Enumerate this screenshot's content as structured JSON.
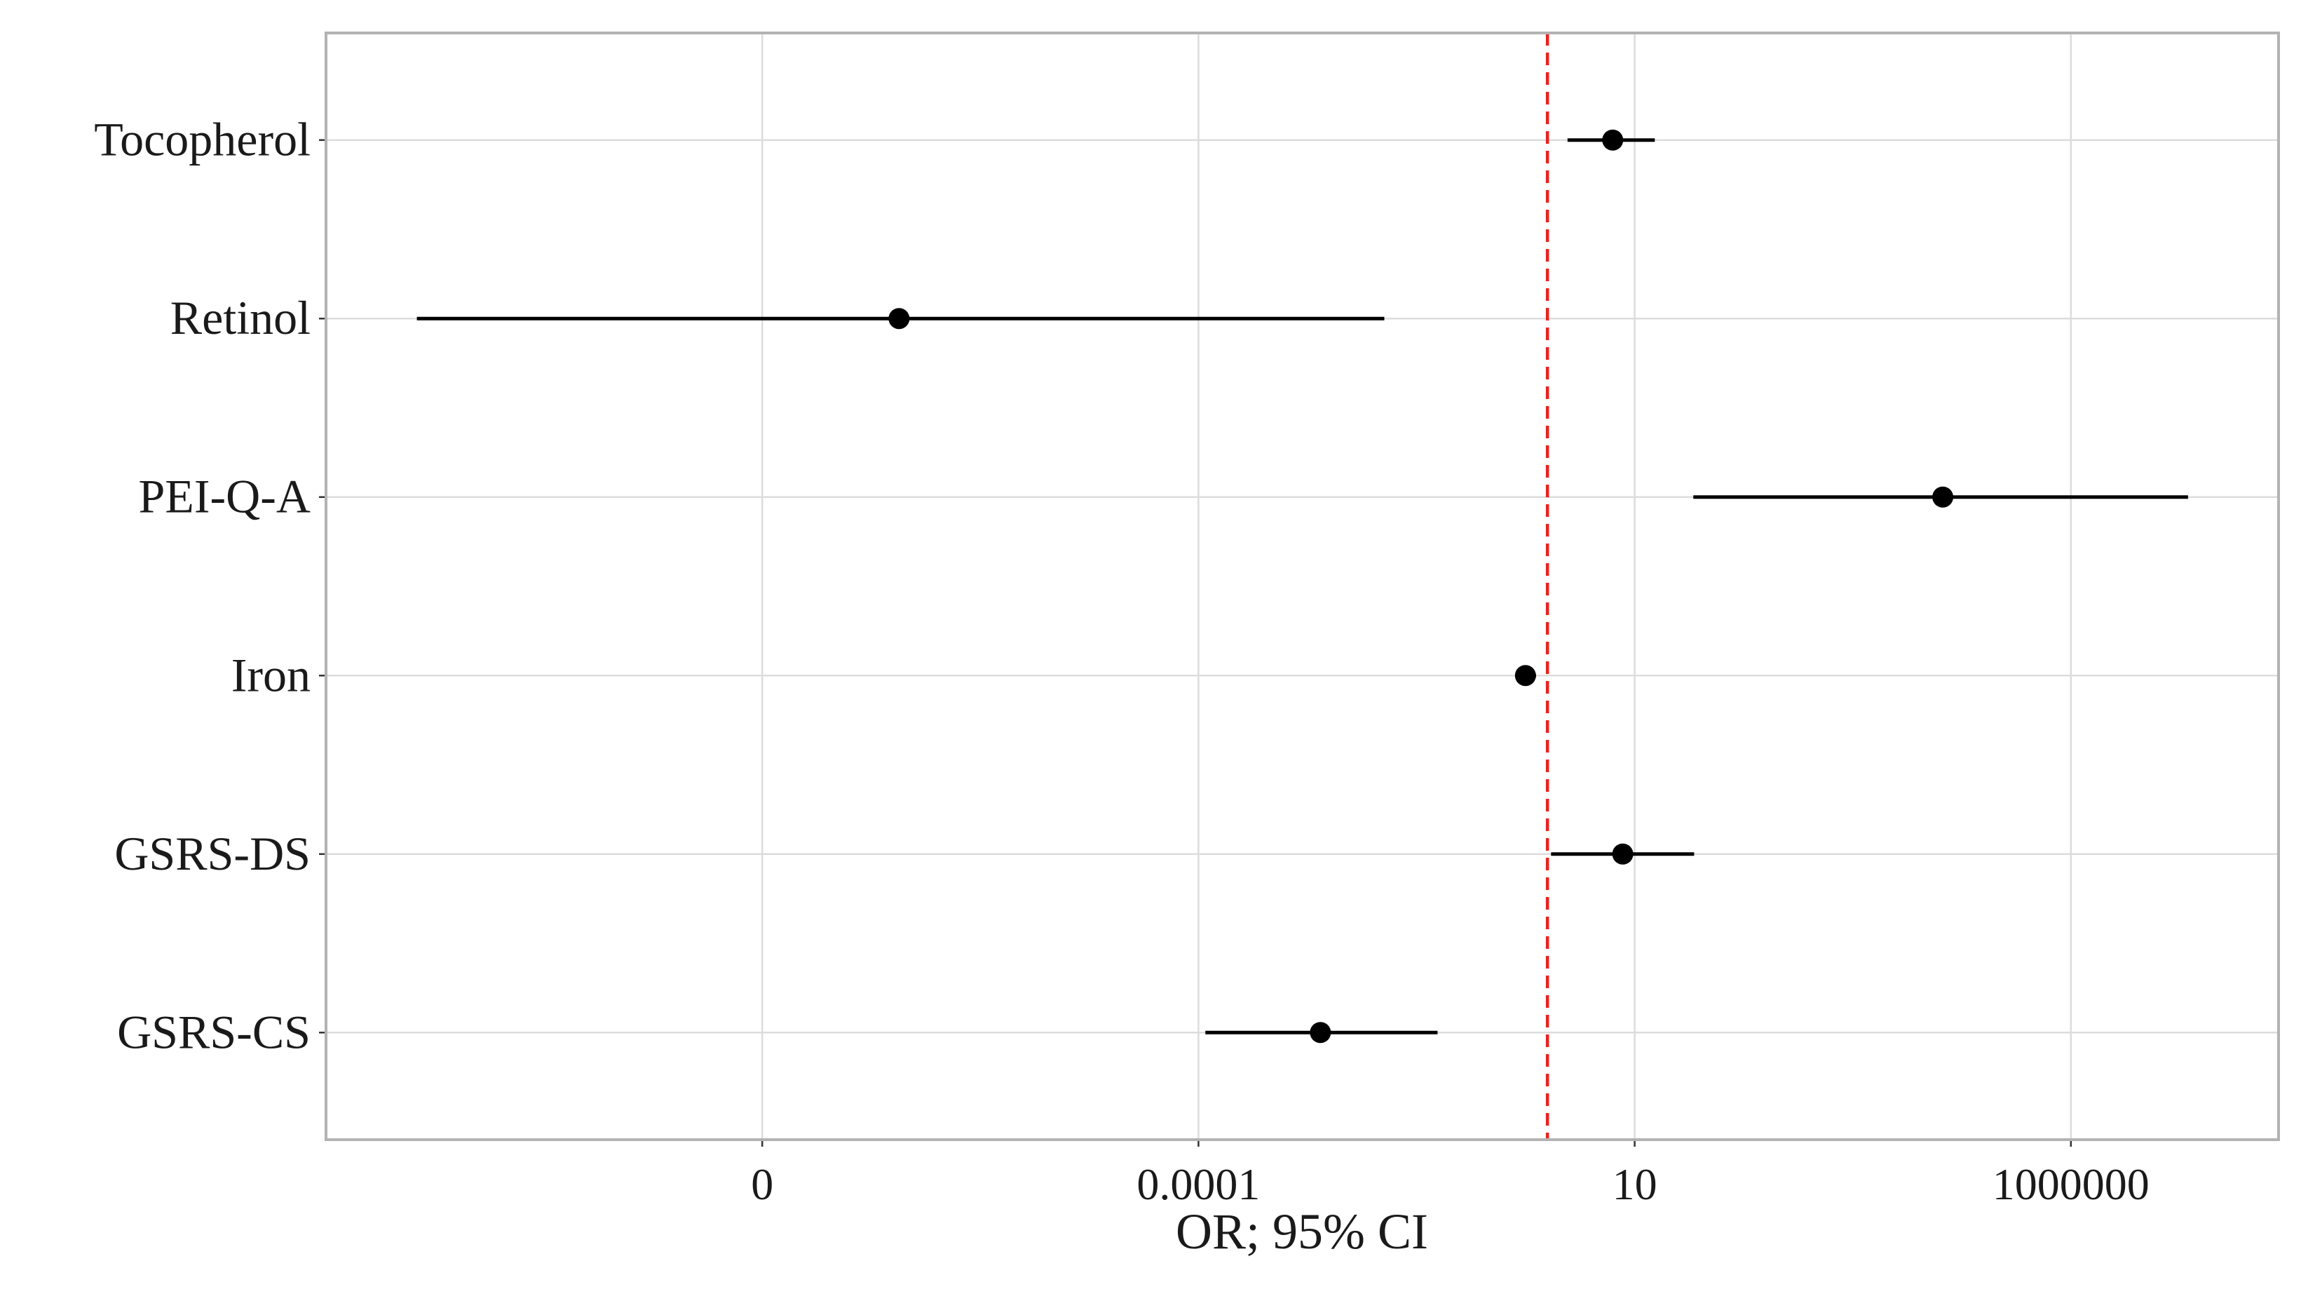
{
  "chart_data": {
    "type": "forest",
    "x_label": "OR; 95% CI",
    "categories": [
      "Tocopherol",
      "Retinol",
      "PEI-Q-A",
      "Iron",
      "GSRS-DS",
      "GSRS-CS"
    ],
    "values": [
      5.6,
      3.7e-08,
      34000,
      0.56,
      7.3,
      0.0025
    ],
    "lower": [
      1.7,
      1.1e-13,
      47,
      0.45,
      1.1,
      0.00012
    ],
    "upper": [
      17,
      0.0135,
      22000000,
      0.74,
      48,
      0.055
    ],
    "color": "#000000",
    "x_log": true,
    "xlim": [
      1e-14,
      240000000.0
    ],
    "xticks": [
      {
        "value": 1e-09,
        "label": "0"
      },
      0.0001,
      10,
      1000000
    ],
    "grid": true,
    "reference_line": {
      "value": 1,
      "color": "#e8231f"
    }
  }
}
